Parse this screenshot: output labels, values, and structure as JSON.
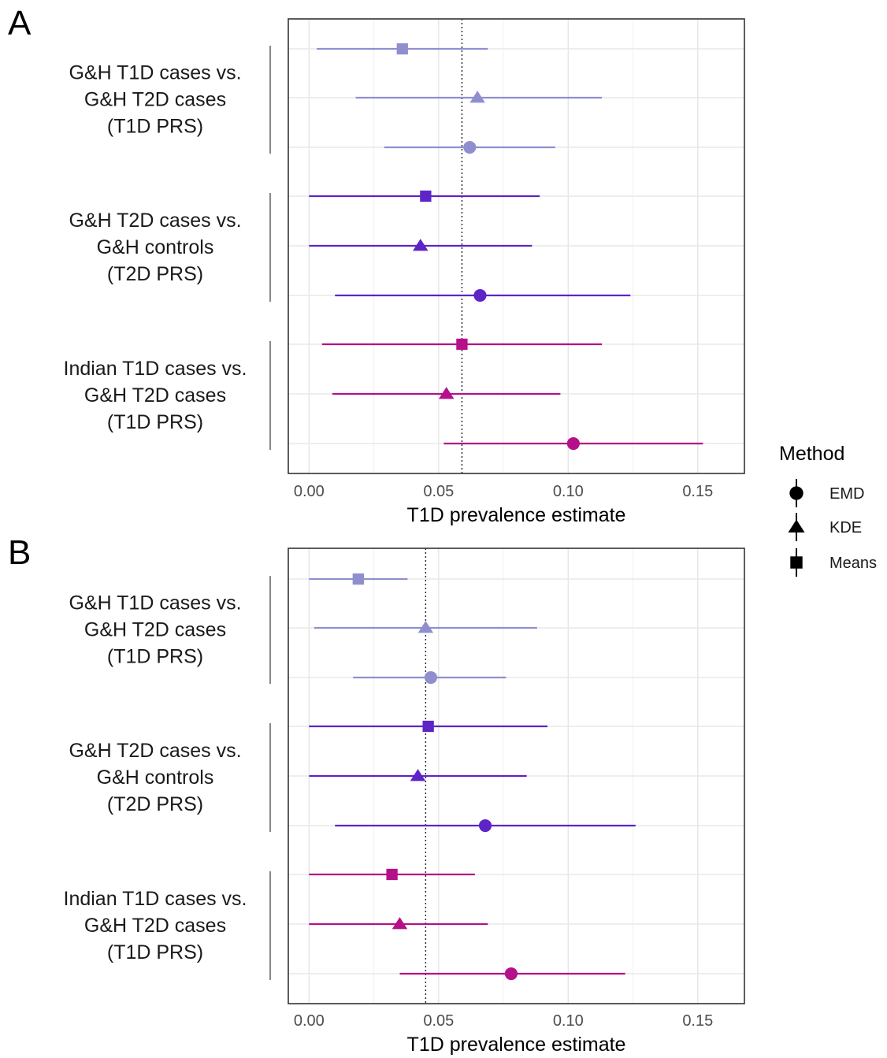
{
  "chart_data": [
    {
      "panel_label": "A",
      "type": "scatter",
      "xlabel": "T1D prevalence estimate",
      "xlim": [
        -0.008,
        0.168
      ],
      "xticks": [
        0.0,
        0.05,
        0.1,
        0.15
      ],
      "xtick_labels": [
        "0.00",
        "0.05",
        "0.10",
        "0.15"
      ],
      "reference_line": 0.059,
      "grid": true,
      "groups": [
        {
          "label_lines": [
            "G&H T1D cases vs.",
            "G&H T2D cases",
            "(T1D PRS)"
          ],
          "color": "#8f8fd0",
          "rows": [
            {
              "method": "Means",
              "estimate": 0.036,
              "lower": 0.003,
              "upper": 0.069
            },
            {
              "method": "KDE",
              "estimate": 0.065,
              "lower": 0.018,
              "upper": 0.113
            },
            {
              "method": "EMD",
              "estimate": 0.062,
              "lower": 0.029,
              "upper": 0.095
            }
          ]
        },
        {
          "label_lines": [
            "G&H T2D cases vs.",
            "G&H controls",
            "(T2D PRS)"
          ],
          "color": "#5d24c8",
          "rows": [
            {
              "method": "Means",
              "estimate": 0.045,
              "lower": 0.0,
              "upper": 0.089
            },
            {
              "method": "KDE",
              "estimate": 0.043,
              "lower": 0.0,
              "upper": 0.086
            },
            {
              "method": "EMD",
              "estimate": 0.066,
              "lower": 0.01,
              "upper": 0.124
            }
          ]
        },
        {
          "label_lines": [
            "Indian T1D cases vs.",
            "G&H T2D cases",
            "(T1D PRS)"
          ],
          "color": "#b5108a",
          "rows": [
            {
              "method": "Means",
              "estimate": 0.059,
              "lower": 0.005,
              "upper": 0.113
            },
            {
              "method": "KDE",
              "estimate": 0.053,
              "lower": 0.009,
              "upper": 0.097
            },
            {
              "method": "EMD",
              "estimate": 0.102,
              "lower": 0.052,
              "upper": 0.152
            }
          ]
        }
      ]
    },
    {
      "panel_label": "B",
      "type": "scatter",
      "xlabel": "T1D prevalence estimate",
      "xlim": [
        -0.008,
        0.168
      ],
      "xticks": [
        0.0,
        0.05,
        0.1,
        0.15
      ],
      "xtick_labels": [
        "0.00",
        "0.05",
        "0.10",
        "0.15"
      ],
      "reference_line": 0.045,
      "grid": true,
      "groups": [
        {
          "label_lines": [
            "G&H T1D cases vs.",
            "G&H T2D cases",
            "(T1D PRS)"
          ],
          "color": "#8f8fd0",
          "rows": [
            {
              "method": "Means",
              "estimate": 0.019,
              "lower": 0.0,
              "upper": 0.038
            },
            {
              "method": "KDE",
              "estimate": 0.045,
              "lower": 0.002,
              "upper": 0.088
            },
            {
              "method": "EMD",
              "estimate": 0.047,
              "lower": 0.017,
              "upper": 0.076
            }
          ]
        },
        {
          "label_lines": [
            "G&H T2D cases vs.",
            "G&H controls",
            "(T2D PRS)"
          ],
          "color": "#5d24c8",
          "rows": [
            {
              "method": "Means",
              "estimate": 0.046,
              "lower": 0.0,
              "upper": 0.092
            },
            {
              "method": "KDE",
              "estimate": 0.042,
              "lower": 0.0,
              "upper": 0.084
            },
            {
              "method": "EMD",
              "estimate": 0.068,
              "lower": 0.01,
              "upper": 0.126
            }
          ]
        },
        {
          "label_lines": [
            "Indian T1D cases vs.",
            "G&H T2D cases",
            "(T1D PRS)"
          ],
          "color": "#b5108a",
          "rows": [
            {
              "method": "Means",
              "estimate": 0.032,
              "lower": 0.0,
              "upper": 0.064
            },
            {
              "method": "KDE",
              "estimate": 0.035,
              "lower": 0.0,
              "upper": 0.069
            },
            {
              "method": "EMD",
              "estimate": 0.078,
              "lower": 0.035,
              "upper": 0.122
            }
          ]
        }
      ]
    }
  ],
  "legend": {
    "title": "Method",
    "placement": "right",
    "items": [
      {
        "label": "EMD",
        "shape": "circle"
      },
      {
        "label": "KDE",
        "shape": "triangle"
      },
      {
        "label": "Means",
        "shape": "square"
      }
    ]
  }
}
